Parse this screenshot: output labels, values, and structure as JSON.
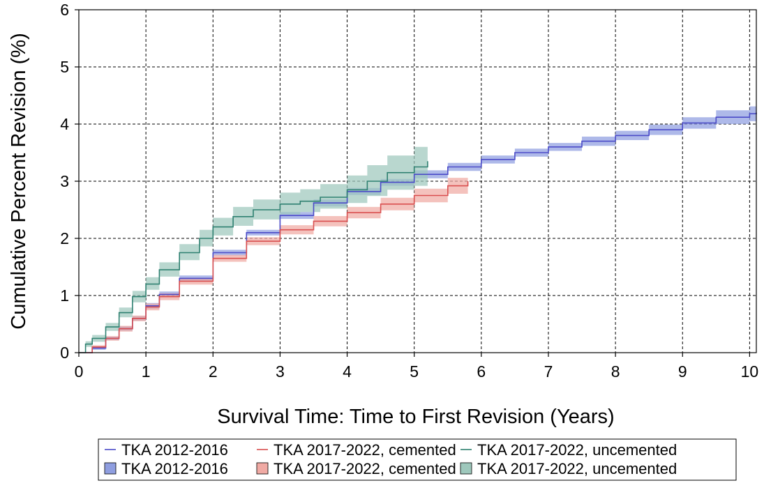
{
  "chart_data": {
    "type": "line",
    "xlabel": "Survival Time: Time to First Revision (Years)",
    "ylabel": "Cumulative Percent Revision (%)",
    "xlim": [
      0,
      10.1
    ],
    "ylim": [
      0,
      6
    ],
    "xticks": [
      0,
      1,
      2,
      3,
      4,
      5,
      6,
      7,
      8,
      9,
      10
    ],
    "yticks": [
      0,
      1,
      2,
      3,
      4,
      5,
      6
    ],
    "grid": true,
    "legend_position": "bottom",
    "series": [
      {
        "name": "TKA 2012-2016",
        "color": "#4b4bc8",
        "band_color": "#8f9ee0",
        "band_name": "TKA 2012-2016",
        "x": [
          0,
          0.2,
          0.4,
          0.6,
          0.8,
          1.0,
          1.2,
          1.5,
          2.0,
          2.5,
          3.0,
          3.5,
          4.0,
          4.5,
          5.0,
          5.5,
          6.0,
          6.5,
          7.0,
          7.5,
          8.0,
          8.5,
          9.0,
          9.5,
          10.0,
          10.1
        ],
        "y": [
          0,
          0.08,
          0.25,
          0.42,
          0.6,
          0.82,
          1.02,
          1.3,
          1.75,
          2.1,
          2.4,
          2.62,
          2.82,
          2.98,
          3.12,
          3.25,
          3.38,
          3.5,
          3.6,
          3.7,
          3.8,
          3.9,
          4.02,
          4.12,
          4.18,
          4.2
        ],
        "lower": [
          0,
          0.05,
          0.22,
          0.38,
          0.56,
          0.77,
          0.97,
          1.25,
          1.7,
          2.05,
          2.34,
          2.56,
          2.76,
          2.92,
          3.05,
          3.18,
          3.31,
          3.43,
          3.53,
          3.62,
          3.72,
          3.81,
          3.92,
          4.0,
          4.05,
          4.06
        ],
        "upper": [
          0,
          0.11,
          0.28,
          0.46,
          0.64,
          0.87,
          1.07,
          1.35,
          1.8,
          2.15,
          2.46,
          2.68,
          2.88,
          3.04,
          3.19,
          3.32,
          3.45,
          3.57,
          3.67,
          3.78,
          3.88,
          3.99,
          4.12,
          4.24,
          4.31,
          4.34
        ]
      },
      {
        "name": "TKA 2017-2022, cemented",
        "color": "#d94f4f",
        "band_color": "#f0aaa4",
        "band_name": "TKA 2017-2022, cemented",
        "x": [
          0,
          0.2,
          0.4,
          0.6,
          0.8,
          1.0,
          1.2,
          1.5,
          2.0,
          2.5,
          3.0,
          3.5,
          4.0,
          4.5,
          5.0,
          5.5,
          5.8
        ],
        "y": [
          0,
          0.1,
          0.25,
          0.42,
          0.6,
          0.8,
          0.98,
          1.25,
          1.65,
          1.95,
          2.15,
          2.3,
          2.45,
          2.6,
          2.75,
          2.92,
          3.0
        ],
        "lower": [
          0,
          0.07,
          0.21,
          0.37,
          0.55,
          0.74,
          0.92,
          1.19,
          1.59,
          1.88,
          2.07,
          2.21,
          2.35,
          2.49,
          2.63,
          2.78,
          2.84
        ],
        "upper": [
          0,
          0.13,
          0.29,
          0.47,
          0.65,
          0.86,
          1.04,
          1.31,
          1.71,
          2.02,
          2.23,
          2.39,
          2.55,
          2.71,
          2.87,
          3.06,
          3.16
        ]
      },
      {
        "name": "TKA 2017-2022, uncemented",
        "color": "#2e8070",
        "band_color": "#9ec8bc",
        "band_name": "TKA 2017-2022, uncemented",
        "x": [
          0,
          0.1,
          0.2,
          0.4,
          0.6,
          0.8,
          1.0,
          1.2,
          1.5,
          1.8,
          2.0,
          2.3,
          2.6,
          3.0,
          3.3,
          3.6,
          4.0,
          4.3,
          4.6,
          5.0,
          5.2
        ],
        "y": [
          0,
          0.15,
          0.25,
          0.45,
          0.7,
          0.98,
          1.2,
          1.45,
          1.75,
          2.0,
          2.2,
          2.38,
          2.5,
          2.6,
          2.65,
          2.72,
          2.85,
          3.0,
          3.15,
          3.25,
          3.35
        ],
        "lower": [
          0,
          0.1,
          0.19,
          0.38,
          0.62,
          0.88,
          1.1,
          1.33,
          1.62,
          1.86,
          2.05,
          2.22,
          2.33,
          2.42,
          2.46,
          2.52,
          2.62,
          2.74,
          2.85,
          2.92,
          2.98
        ],
        "upper": [
          0,
          0.2,
          0.31,
          0.52,
          0.79,
          1.08,
          1.32,
          1.58,
          1.9,
          2.15,
          2.36,
          2.55,
          2.68,
          2.8,
          2.86,
          2.95,
          3.1,
          3.28,
          3.45,
          3.6,
          3.75
        ]
      }
    ]
  }
}
